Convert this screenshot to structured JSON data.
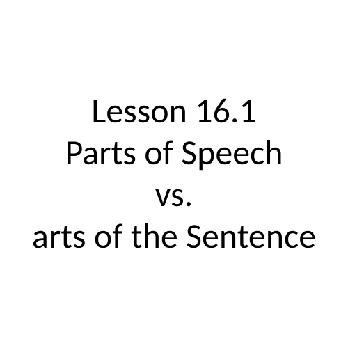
{
  "slide": {
    "lines": [
      "Lesson 16.1",
      "Parts of Speech",
      "vs.",
      "arts of the Sentence"
    ],
    "font_size": 50,
    "font_color": "#000000",
    "background_color": "#ffffff",
    "font_family": "Calibri"
  }
}
